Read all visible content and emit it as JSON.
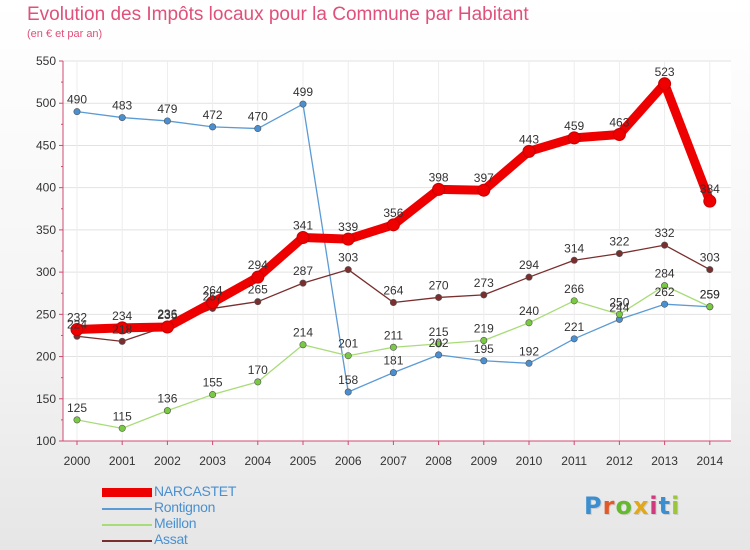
{
  "header": {
    "title": "Evolution des Impôts locaux pour la Commune par Habitant",
    "subtitle": "(en € et par an)"
  },
  "brand": {
    "name": "Proxiti",
    "letter_colors": [
      "#3b8fd0",
      "#e05a2a",
      "#66b82e",
      "#e2a81c",
      "#d0397d",
      "#3b8fd0",
      "#9bc53d"
    ]
  },
  "chart_data": {
    "type": "line",
    "title": "Evolution des Impôts locaux pour la Commune par Habitant",
    "subtitle": "(en € et par an)",
    "xlabel": "",
    "ylabel": "",
    "x": [
      2000,
      2001,
      2002,
      2003,
      2004,
      2005,
      2006,
      2007,
      2008,
      2009,
      2010,
      2011,
      2012,
      2013,
      2014
    ],
    "ylim": [
      100,
      550
    ],
    "yticks": [
      100,
      150,
      200,
      250,
      300,
      350,
      400,
      450,
      500,
      550
    ],
    "grid": true,
    "legend_position": "bottom-left",
    "series": [
      {
        "name": "NARCASTET",
        "color": "#ee0000",
        "values": [
          232,
          234,
          235,
          264,
          294,
          341,
          339,
          356,
          398,
          397,
          443,
          459,
          463,
          523,
          384
        ],
        "labels": [
          "232",
          "234",
          "235",
          "264",
          "294",
          "341",
          "339",
          "356",
          "398",
          "397",
          "443",
          "459",
          "463",
          "523",
          "384"
        ]
      },
      {
        "name": "Rontignon",
        "color": "#5b9bd5",
        "marker_color": "#4a8fd0",
        "values": [
          490,
          483,
          479,
          472,
          470,
          499,
          158,
          181,
          202,
          195,
          192,
          221,
          244,
          262,
          259
        ],
        "labels": [
          "490",
          "483",
          "479",
          "472",
          "470",
          "499",
          "158",
          "181",
          "202",
          "195",
          "192",
          "221",
          "244",
          "262",
          "259"
        ]
      },
      {
        "name": "Meillon",
        "color": "#a8dc78",
        "marker_color": "#7ac943",
        "values": [
          125,
          115,
          136,
          155,
          170,
          214,
          201,
          211,
          215,
          219,
          240,
          266,
          250,
          284,
          259
        ],
        "labels": [
          "125",
          "115",
          "136",
          "155",
          "170",
          "214",
          "201",
          "211",
          "215",
          "219",
          "240",
          "266",
          "250",
          "284",
          "259"
        ]
      },
      {
        "name": "Assat",
        "color": "#7a2e2e",
        "marker_color": "#7a2e2e",
        "values": [
          224,
          218,
          236,
          257,
          265,
          287,
          303,
          264,
          270,
          273,
          294,
          314,
          322,
          332,
          303
        ],
        "labels": [
          "224",
          "218",
          "236",
          "257",
          "265",
          "287",
          "303",
          "264",
          "270",
          "273",
          "294",
          "314",
          "322",
          "332",
          "303"
        ]
      }
    ]
  }
}
